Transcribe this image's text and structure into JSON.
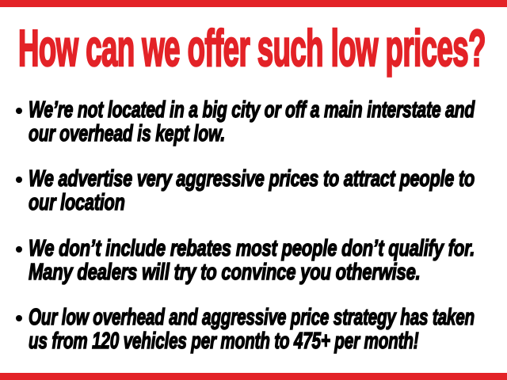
{
  "colors": {
    "accent": "#e32227",
    "text": "#000000",
    "background": "#ffffff"
  },
  "headline": "How can we offer such low prices?",
  "bullets": [
    {
      "line1": "We’re not located in a big city or off a main interstate and",
      "line2": "our overhead is kept low."
    },
    {
      "line1": "We advertise very aggressive prices to attract people to",
      "line2": "our location"
    },
    {
      "line1": "We don’t include rebates most people don’t qualify for.",
      "line2": "Many dealers will try to convince you otherwise."
    },
    {
      "line1": "Our low overhead and aggressive price strategy has taken",
      "line2": "us from 120 vehicles per month to 475+ per month!"
    }
  ]
}
